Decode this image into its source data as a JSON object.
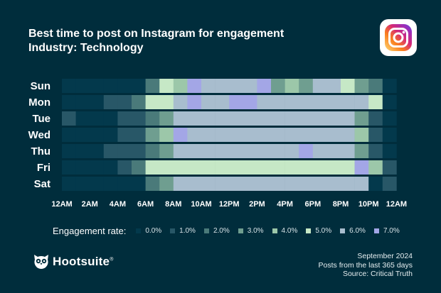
{
  "header": {
    "title": "Best time to post on Instagram for engagement",
    "subtitle": "Industry: Technology"
  },
  "icons": {
    "instagram": "instagram-icon",
    "hootsuite_owl": "owl-icon"
  },
  "legend": {
    "title": "Engagement rate:",
    "items": [
      {
        "label": "0.0%",
        "color": "#03394c"
      },
      {
        "label": "1.0%",
        "color": "#285767"
      },
      {
        "label": "2.0%",
        "color": "#4a7a7a"
      },
      {
        "label": "3.0%",
        "color": "#6f9e90"
      },
      {
        "label": "4.0%",
        "color": "#9cc7a9"
      },
      {
        "label": "5.0%",
        "color": "#c6e8c6"
      },
      {
        "label": "6.0%",
        "color": "#a8bdce"
      },
      {
        "label": "7.0%",
        "color": "#a3a6e6"
      }
    ]
  },
  "chart_data": {
    "type": "heatmap",
    "title": "Best time to post on Instagram for engagement",
    "subtitle": "Industry: Technology",
    "rows": [
      "Sun",
      "Mon",
      "Tue",
      "Wed",
      "Thu",
      "Fri",
      "Sat"
    ],
    "x_tick_labels": [
      "12AM",
      "2AM",
      "4AM",
      "6AM",
      "8AM",
      "10AM",
      "12PM",
      "2PM",
      "4PM",
      "6PM",
      "8PM",
      "10PM",
      "12AM"
    ],
    "hours": 24,
    "unit": "engagement rate (%)",
    "color_scale": [
      {
        "value": 0.0,
        "color": "#03394c"
      },
      {
        "value": 1.0,
        "color": "#285767"
      },
      {
        "value": 2.0,
        "color": "#4a7a7a"
      },
      {
        "value": 3.0,
        "color": "#6f9e90"
      },
      {
        "value": 4.0,
        "color": "#9cc7a9"
      },
      {
        "value": 5.0,
        "color": "#c6e8c6"
      },
      {
        "value": 6.0,
        "color": "#a8bdce"
      },
      {
        "value": 7.0,
        "color": "#a3a6e6"
      }
    ],
    "values": [
      [
        0,
        0,
        0,
        0,
        0,
        0,
        2,
        5,
        4,
        7,
        6,
        6,
        6,
        6,
        7,
        3,
        4,
        3,
        6,
        6,
        5,
        3,
        2,
        0
      ],
      [
        0,
        0,
        0,
        1,
        1,
        2,
        5,
        5,
        6,
        7,
        6,
        6,
        7,
        7,
        6,
        6,
        6,
        6,
        6,
        6,
        6,
        6,
        5,
        0
      ],
      [
        1,
        0,
        0,
        0,
        1,
        1,
        2,
        3,
        6,
        6,
        6,
        6,
        6,
        6,
        6,
        6,
        6,
        6,
        6,
        6,
        6,
        3,
        1,
        0
      ],
      [
        0,
        0,
        0,
        0,
        1,
        1,
        3,
        4,
        7,
        6,
        6,
        6,
        6,
        6,
        6,
        6,
        6,
        6,
        6,
        6,
        6,
        4,
        1,
        0
      ],
      [
        0,
        0,
        0,
        1,
        1,
        1,
        2,
        3,
        6,
        6,
        6,
        6,
        6,
        6,
        6,
        6,
        6,
        7,
        6,
        6,
        6,
        3,
        1,
        0
      ],
      [
        0,
        0,
        0,
        0,
        1,
        2,
        5,
        5,
        5,
        5,
        5,
        5,
        5,
        5,
        5,
        5,
        5,
        5,
        5,
        5,
        5,
        7,
        4,
        1
      ],
      [
        0,
        0,
        0,
        0,
        0,
        0,
        2,
        3,
        6,
        6,
        6,
        6,
        6,
        6,
        6,
        6,
        6,
        6,
        6,
        6,
        6,
        6,
        0,
        1
      ]
    ]
  },
  "footer": {
    "brand": "Hootsuite",
    "brand_mark": "®",
    "source_lines": [
      "September 2024",
      "Posts from the last 365 days",
      "Source: Critical Truth"
    ]
  }
}
